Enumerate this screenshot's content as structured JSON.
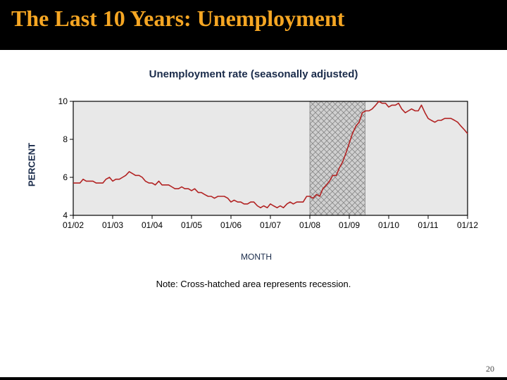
{
  "slide": {
    "title": "The Last 10 Years:  Unemployment",
    "page_number": "20"
  },
  "chart": {
    "type": "line",
    "title": "Unemployment rate (seasonally adjusted)",
    "y_axis_label": "PERCENT",
    "x_axis_label": "MONTH",
    "note": "Note: Cross-hatched area represents recession.",
    "plot_bg": "#e8e8e8",
    "outer_bg": "#ffffff",
    "border_color": "#000000",
    "line_color": "#b22222",
    "line_width": 1.6,
    "title_color": "#1a2b4a",
    "axis_label_color": "#1a2b4a",
    "tick_fontsize": 12,
    "ylim": [
      4,
      10
    ],
    "ytick_step": 2,
    "yticks": [
      4,
      6,
      8,
      10
    ],
    "x_categories": [
      "01/02",
      "01/03",
      "01/04",
      "01/05",
      "01/06",
      "01/07",
      "01/08",
      "01/09",
      "01/10",
      "01/11",
      "01/12"
    ],
    "recession_band": {
      "x_start": 6.0,
      "x_end": 7.4,
      "fill": "#d0d0d0",
      "pattern": "crosshatch"
    },
    "series_x": [
      0.0,
      0.08,
      0.17,
      0.25,
      0.33,
      0.42,
      0.5,
      0.58,
      0.67,
      0.75,
      0.83,
      0.92,
      1.0,
      1.08,
      1.17,
      1.25,
      1.33,
      1.42,
      1.5,
      1.58,
      1.67,
      1.75,
      1.83,
      1.92,
      2.0,
      2.08,
      2.17,
      2.25,
      2.33,
      2.42,
      2.5,
      2.58,
      2.67,
      2.75,
      2.83,
      2.92,
      3.0,
      3.08,
      3.17,
      3.25,
      3.33,
      3.42,
      3.5,
      3.58,
      3.67,
      3.75,
      3.83,
      3.92,
      4.0,
      4.08,
      4.17,
      4.25,
      4.33,
      4.42,
      4.5,
      4.58,
      4.67,
      4.75,
      4.83,
      4.92,
      5.0,
      5.08,
      5.17,
      5.25,
      5.33,
      5.42,
      5.5,
      5.58,
      5.67,
      5.75,
      5.83,
      5.92,
      6.0,
      6.08,
      6.17,
      6.25,
      6.33,
      6.42,
      6.5,
      6.58,
      6.67,
      6.75,
      6.83,
      6.92,
      7.0,
      7.08,
      7.17,
      7.25,
      7.33,
      7.42,
      7.5,
      7.58,
      7.67,
      7.75,
      7.83,
      7.92,
      8.0,
      8.08,
      8.17,
      8.25,
      8.33,
      8.42,
      8.5,
      8.58,
      8.67,
      8.75,
      8.83,
      8.92,
      9.0,
      9.08,
      9.17,
      9.25,
      9.33,
      9.42,
      9.5,
      9.58,
      9.67,
      9.75,
      9.83,
      9.92,
      10.0
    ],
    "series_y": [
      5.7,
      5.7,
      5.7,
      5.9,
      5.8,
      5.8,
      5.8,
      5.7,
      5.7,
      5.7,
      5.9,
      6.0,
      5.8,
      5.9,
      5.9,
      6.0,
      6.1,
      6.3,
      6.2,
      6.1,
      6.1,
      6.0,
      5.8,
      5.7,
      5.7,
      5.6,
      5.8,
      5.6,
      5.6,
      5.6,
      5.5,
      5.4,
      5.4,
      5.5,
      5.4,
      5.4,
      5.3,
      5.4,
      5.2,
      5.2,
      5.1,
      5.0,
      5.0,
      4.9,
      5.0,
      5.0,
      5.0,
      4.9,
      4.7,
      4.8,
      4.7,
      4.7,
      4.6,
      4.6,
      4.7,
      4.7,
      4.5,
      4.4,
      4.5,
      4.4,
      4.6,
      4.5,
      4.4,
      4.5,
      4.4,
      4.6,
      4.7,
      4.6,
      4.7,
      4.7,
      4.7,
      5.0,
      5.0,
      4.9,
      5.1,
      5.0,
      5.4,
      5.6,
      5.8,
      6.1,
      6.1,
      6.5,
      6.8,
      7.3,
      7.8,
      8.3,
      8.7,
      8.9,
      9.4,
      9.5,
      9.5,
      9.6,
      9.8,
      10.0,
      9.9,
      9.9,
      9.7,
      9.8,
      9.8,
      9.9,
      9.6,
      9.4,
      9.5,
      9.6,
      9.5,
      9.5,
      9.8,
      9.4,
      9.1,
      9.0,
      8.9,
      9.0,
      9.0,
      9.1,
      9.1,
      9.1,
      9.0,
      8.9,
      8.7,
      8.5,
      8.3
    ]
  }
}
